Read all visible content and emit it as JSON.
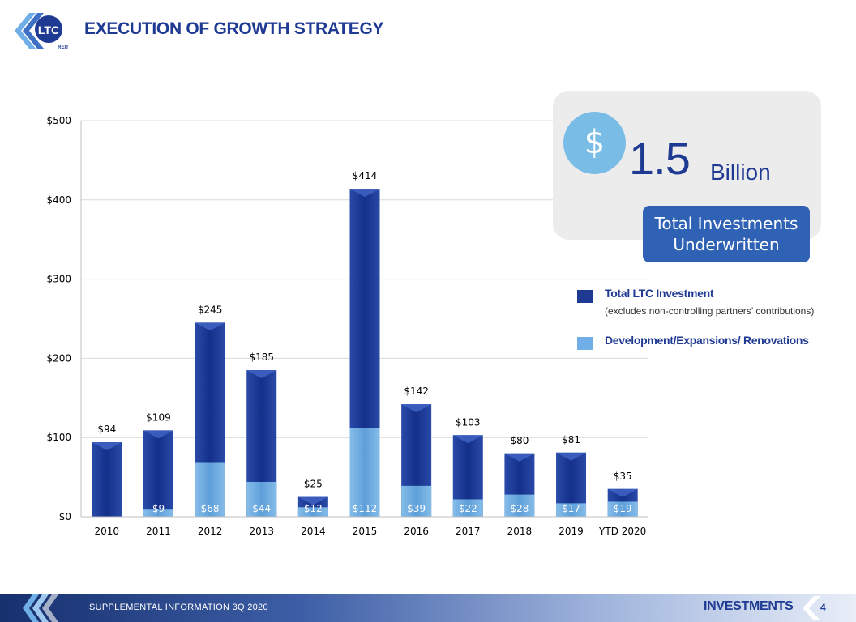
{
  "header": {
    "title": "EXECUTION OF GROWTH STRATEGY",
    "logo_text": "LTC",
    "logo_subtext": "REIT"
  },
  "callout": {
    "symbol": "$",
    "amount": "1.5",
    "unit": "Billion",
    "caption": "Total Investments Underwritten"
  },
  "legend": {
    "items": [
      {
        "label": "Total LTC Investment",
        "sublabel": "(excludes non-controlling partners’ contributions)",
        "color": "#1f3a93"
      },
      {
        "label": "Development/Expansions/ Renovations",
        "sublabel": "",
        "color": "#6faee6"
      }
    ]
  },
  "chart_data": {
    "type": "bar",
    "stacked": "overlay",
    "categories": [
      "2010",
      "2011",
      "2012",
      "2013",
      "2014",
      "2015",
      "2016",
      "2017",
      "2018",
      "2019",
      "YTD 2020"
    ],
    "series": [
      {
        "name": "Total LTC Investment",
        "values": [
          94,
          109,
          245,
          185,
          25,
          414,
          142,
          103,
          80,
          81,
          35
        ],
        "labels": [
          "$94",
          "$109",
          "$245",
          "$185",
          "$25",
          "$414",
          "$142",
          "$103",
          "$80",
          "$81",
          "$35"
        ],
        "color": "#1f3a93"
      },
      {
        "name": "Development/Expansions/ Renovations",
        "values": [
          null,
          9,
          68,
          44,
          12,
          112,
          39,
          22,
          28,
          17,
          19
        ],
        "labels": [
          "",
          "$9",
          "$68",
          "$44",
          "$12",
          "$112",
          "$39",
          "$22",
          "$28",
          "$17",
          "$19"
        ],
        "color": "#6faee6"
      }
    ],
    "yticks": [
      "$0",
      "$100",
      "$200",
      "$300",
      "$400",
      "$500"
    ],
    "ylim": [
      0,
      500
    ],
    "grid": "horizontal"
  },
  "footer": {
    "left_text": "SUPPLEMENTAL INFORMATION 3Q 2020",
    "section": "INVESTMENTS",
    "page": "4"
  }
}
